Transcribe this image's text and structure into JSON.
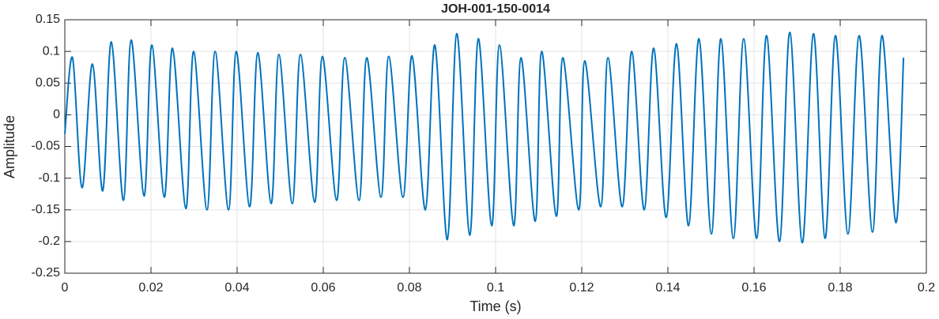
{
  "chart_data": {
    "type": "line",
    "title": "JOH-001-150-0014",
    "x_label": "Time (s)",
    "y_label": "Amplitude",
    "x": [
      0,
      0.0018,
      0.004,
      0.0064,
      0.0088,
      0.0108,
      0.0136,
      0.0154,
      0.0184,
      0.0202,
      0.0231,
      0.025,
      0.0281,
      0.0299,
      0.033,
      0.0349,
      0.038,
      0.0398,
      0.0429,
      0.0448,
      0.0479,
      0.0497,
      0.0528,
      0.0547,
      0.058,
      0.0598,
      0.0631,
      0.065,
      0.0683,
      0.0701,
      0.0734,
      0.0752,
      0.0785,
      0.0806,
      0.0837,
      0.0859,
      0.0888,
      0.091,
      0.094,
      0.096,
      0.0991,
      0.1009,
      0.1042,
      0.1059,
      0.1092,
      0.1107,
      0.1141,
      0.1156,
      0.1193,
      0.1207,
      0.1244,
      0.1261,
      0.1294,
      0.1316,
      0.1345,
      0.1367,
      0.1396,
      0.142,
      0.1448,
      0.1472,
      0.1501,
      0.1523,
      0.1552,
      0.1576,
      0.1606,
      0.1629,
      0.1659,
      0.1683,
      0.1712,
      0.1738,
      0.1765,
      0.1789,
      0.1818,
      0.1844,
      0.1875,
      0.1897,
      0.1929,
      0.1947
    ],
    "series": [
      {
        "name": "Amplitude",
        "color": "#0072bd",
        "values": [
          -0.03,
          0.09,
          -0.115,
          0.08,
          -0.12,
          0.115,
          -0.135,
          0.118,
          -0.128,
          0.11,
          -0.13,
          0.105,
          -0.148,
          0.1,
          -0.15,
          0.1,
          -0.15,
          0.1,
          -0.145,
          0.098,
          -0.14,
          0.095,
          -0.14,
          0.095,
          -0.138,
          0.092,
          -0.135,
          0.09,
          -0.135,
          0.09,
          -0.13,
          0.092,
          -0.13,
          0.093,
          -0.15,
          0.11,
          -0.197,
          0.128,
          -0.19,
          0.12,
          -0.175,
          0.11,
          -0.175,
          0.09,
          -0.168,
          0.1,
          -0.16,
          0.09,
          -0.15,
          0.085,
          -0.145,
          0.09,
          -0.145,
          0.1,
          -0.15,
          0.105,
          -0.162,
          0.112,
          -0.175,
          0.12,
          -0.188,
          0.12,
          -0.195,
          0.12,
          -0.195,
          0.125,
          -0.2,
          0.13,
          -0.202,
          0.128,
          -0.195,
          0.125,
          -0.188,
          0.125,
          -0.185,
          0.125,
          -0.17,
          0.09
        ]
      }
    ],
    "xlim": [
      0,
      0.2
    ],
    "xticks": [
      0,
      0.02,
      0.04,
      0.06,
      0.08,
      0.1,
      0.12,
      0.14,
      0.16,
      0.18,
      0.2
    ],
    "ylim": [
      -0.25,
      0.15
    ],
    "yticks": [
      -0.25,
      -0.2,
      -0.15,
      -0.1,
      -0.05,
      0,
      0.05,
      0.1,
      0.15
    ],
    "grid": true
  }
}
